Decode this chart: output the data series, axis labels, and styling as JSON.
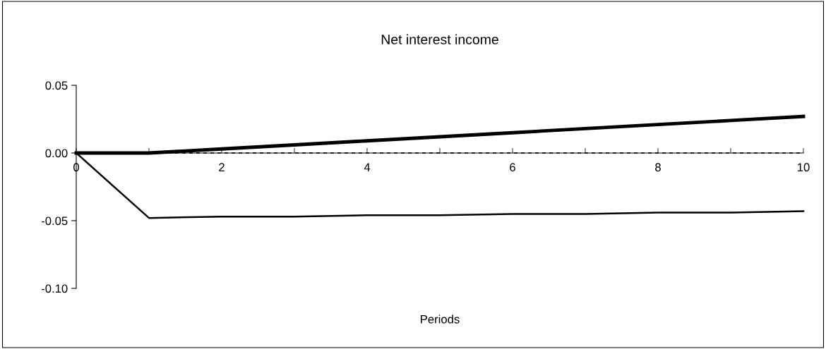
{
  "chart_data": {
    "type": "line",
    "title": "Net interest income",
    "xlabel": "Periods",
    "x": [
      0,
      1,
      2,
      3,
      4,
      5,
      6,
      7,
      8,
      9,
      10
    ],
    "series": [
      {
        "color": "#000000",
        "line_style": "dashed",
        "values": [
          0,
          0,
          0,
          0,
          0,
          0,
          0,
          0,
          0,
          0,
          0
        ]
      },
      {
        "color": "#000000",
        "line_style": "solid",
        "values": [
          0,
          0,
          0.003,
          0.006,
          0.009,
          0.012,
          0.015,
          0.018,
          0.021,
          0.024,
          0.027
        ]
      },
      {
        "color": "#000000",
        "line_style": "solid",
        "values": [
          0,
          -0.048,
          -0.047,
          -0.047,
          -0.046,
          -0.046,
          -0.045,
          -0.045,
          -0.044,
          -0.044,
          -0.043
        ]
      }
    ],
    "xlim": [
      0,
      10
    ],
    "xticks": [
      0,
      {
        "value": 1,
        "label": null
      },
      2,
      {
        "value": 3,
        "label": null
      },
      4,
      {
        "value": 5,
        "label": null
      },
      6,
      {
        "value": 7,
        "label": null
      },
      8,
      {
        "value": 9,
        "label": null
      },
      10
    ],
    "ylim": [
      -0.1,
      0.05
    ],
    "yticks": [
      {
        "value": 0.05,
        "label": "0.05"
      },
      {
        "value": 0,
        "label": "0.00"
      },
      {
        "value": -0.05,
        "label": "-0.05"
      },
      {
        "value": -0.1,
        "label": "-0.10"
      }
    ],
    "grid": false,
    "legend": false,
    "marker": "none"
  }
}
